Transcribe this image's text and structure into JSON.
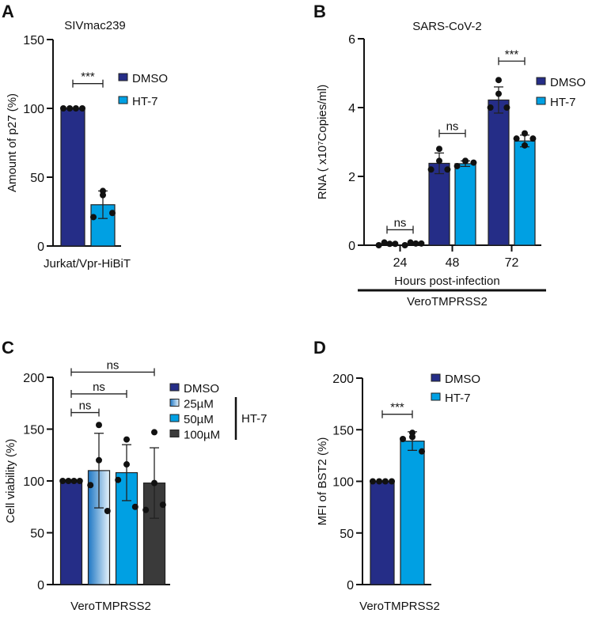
{
  "colors": {
    "dmso": "#252d87",
    "ht7": "#00a0e3",
    "ht7_100": "#3a3a3a",
    "ht7_25_from": "#1f77c4",
    "ht7_25_to": "#e6f3fb",
    "axis": "#111111"
  },
  "chart_data": [
    {
      "panel": "A",
      "type": "bar",
      "title": "SIVmac239",
      "ylabel": "Amount of p27 (%)",
      "xlabel": "Jurkat/Vpr-HiBiT",
      "ylim": [
        0,
        150
      ],
      "yticks": [
        0,
        50,
        100,
        150
      ],
      "legend": [
        "DMSO",
        "HT-7"
      ],
      "legend_position": "right",
      "groups": [
        {
          "label": "",
          "bars": [
            {
              "name": "DMSO",
              "value": 100,
              "sd": 0,
              "points": [
                100,
                100,
                100,
                100
              ]
            },
            {
              "name": "HT-7",
              "value": 30,
              "sd": 10,
              "points": [
                40,
                37,
                21,
                24
              ]
            }
          ]
        }
      ],
      "significance": [
        {
          "label": "***",
          "from": [
            0,
            0
          ],
          "to": [
            0,
            1
          ],
          "y": 118
        }
      ]
    },
    {
      "panel": "B",
      "type": "bar",
      "title": "SARS-CoV-2",
      "ylabel": "RNA ( x10⁷Copies/ml)",
      "xlabel": "Hours post-infection",
      "sublabel": "VeroTMPRSS2",
      "ylim": [
        0,
        6
      ],
      "yticks": [
        0,
        2,
        4,
        6
      ],
      "legend": [
        "DMSO",
        "HT-7"
      ],
      "legend_position": "right",
      "groups": [
        {
          "label": "24",
          "bars": [
            {
              "name": "DMSO",
              "value": 0.04,
              "sd": 0.02,
              "points": [
                0.0,
                0.08,
                0.04,
                0.04
              ]
            },
            {
              "name": "HT-7",
              "value": 0.05,
              "sd": 0.02,
              "points": [
                0.0,
                0.08,
                0.05,
                0.05
              ]
            }
          ]
        },
        {
          "label": "48",
          "bars": [
            {
              "name": "DMSO",
              "value": 2.38,
              "sd": 0.3,
              "points": [
                2.8,
                2.45,
                2.2,
                2.2
              ]
            },
            {
              "name": "HT-7",
              "value": 2.37,
              "sd": 0.08,
              "points": [
                2.45,
                2.45,
                2.3,
                2.4
              ]
            }
          ]
        },
        {
          "label": "72",
          "bars": [
            {
              "name": "DMSO",
              "value": 4.22,
              "sd": 0.38,
              "points": [
                4.8,
                4.4,
                4.0,
                4.0
              ]
            },
            {
              "name": "HT-7",
              "value": 3.03,
              "sd": 0.17,
              "points": [
                3.25,
                2.9,
                3.1,
                3.1
              ]
            }
          ]
        }
      ],
      "significance": [
        {
          "label": "ns",
          "from": [
            0,
            0
          ],
          "to": [
            0,
            1
          ],
          "y": 0.45
        },
        {
          "label": "ns",
          "from": [
            1,
            0
          ],
          "to": [
            1,
            1
          ],
          "y": 3.25
        },
        {
          "label": "***",
          "from": [
            2,
            0
          ],
          "to": [
            2,
            1
          ],
          "y": 5.35
        }
      ]
    },
    {
      "panel": "C",
      "type": "bar",
      "title": "",
      "ylabel": "Cell viability (%)",
      "xlabel": "VeroTMPRSS2",
      "ylim": [
        0,
        200
      ],
      "yticks": [
        0,
        50,
        100,
        150,
        200
      ],
      "legend": [
        "DMSO",
        "25µM",
        "50µM",
        "100µM"
      ],
      "legend_group": "HT-7",
      "legend_position": "right",
      "groups": [
        {
          "label": "",
          "bars": [
            {
              "name": "DMSO",
              "value": 100,
              "sd": 0,
              "points": [
                100,
                100,
                100,
                100
              ]
            },
            {
              "name": "25µM",
              "value": 110,
              "sd": 36,
              "points": [
                154,
                120,
                96,
                71
              ]
            },
            {
              "name": "50µM",
              "value": 108,
              "sd": 27,
              "points": [
                140,
                116,
                101,
                75
              ]
            },
            {
              "name": "100µM",
              "value": 98,
              "sd": 34,
              "points": [
                147,
                98,
                72,
                77
              ]
            }
          ]
        }
      ],
      "significance": [
        {
          "label": "ns",
          "from": [
            0,
            0
          ],
          "to": [
            0,
            3
          ],
          "y": 205
        },
        {
          "label": "ns",
          "from": [
            0,
            0
          ],
          "to": [
            0,
            2
          ],
          "y": 184
        },
        {
          "label": "ns",
          "from": [
            0,
            0
          ],
          "to": [
            0,
            1
          ],
          "y": 166
        }
      ]
    },
    {
      "panel": "D",
      "type": "bar",
      "title": "",
      "ylabel": "MFI of BST2 (%)",
      "xlabel": "VeroTMPRSS2",
      "ylim": [
        0,
        200
      ],
      "yticks": [
        0,
        50,
        100,
        150,
        200
      ],
      "legend": [
        "DMSO",
        "HT-7"
      ],
      "legend_position": "top-right",
      "groups": [
        {
          "label": "",
          "bars": [
            {
              "name": "DMSO",
              "value": 100,
              "sd": 0,
              "points": [
                100,
                100,
                100,
                100
              ]
            },
            {
              "name": "HT-7",
              "value": 139,
              "sd": 9,
              "points": [
                147,
                143,
                141,
                129
              ]
            }
          ]
        }
      ],
      "significance": [
        {
          "label": "***",
          "from": [
            0,
            0
          ],
          "to": [
            0,
            1
          ],
          "y": 165
        }
      ]
    }
  ]
}
